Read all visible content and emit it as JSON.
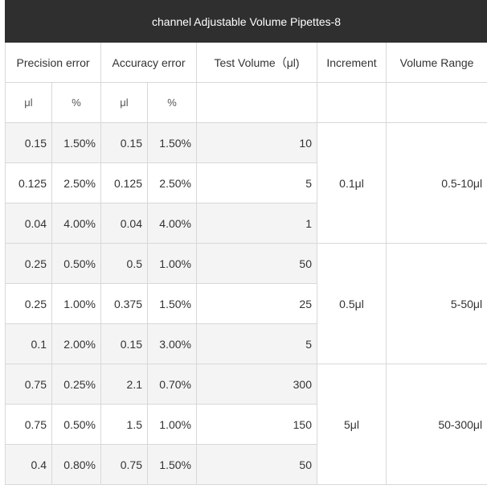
{
  "title": "channel Adjustable Volume Pipettes-8",
  "headers": {
    "precision": "Precision error",
    "accuracy": "Accuracy error",
    "test_volume": "Test Volume（μl)",
    "increment": "Increment",
    "volume_range": "Volume Range"
  },
  "units": {
    "precision_ul": "μl",
    "precision_pct": "%",
    "accuracy_ul": "μl",
    "accuracy_pct": "%"
  },
  "groups": [
    {
      "increment": "0.1μl",
      "volume_range": "0.5-10μl",
      "rows": [
        {
          "prec_ul": "0.15",
          "prec_pct": "1.50%",
          "acc_ul": "0.15",
          "acc_pct": "1.50%",
          "test_volume": "10"
        },
        {
          "prec_ul": "0.125",
          "prec_pct": "2.50%",
          "acc_ul": "0.125",
          "acc_pct": "2.50%",
          "test_volume": "5"
        },
        {
          "prec_ul": "0.04",
          "prec_pct": "4.00%",
          "acc_ul": "0.04",
          "acc_pct": "4.00%",
          "test_volume": "1"
        }
      ]
    },
    {
      "increment": "0.5μl",
      "volume_range": "5-50μl",
      "rows": [
        {
          "prec_ul": "0.25",
          "prec_pct": "0.50%",
          "acc_ul": "0.5",
          "acc_pct": "1.00%",
          "test_volume": "50"
        },
        {
          "prec_ul": "0.25",
          "prec_pct": "1.00%",
          "acc_ul": "0.375",
          "acc_pct": "1.50%",
          "test_volume": "25"
        },
        {
          "prec_ul": "0.1",
          "prec_pct": "2.00%",
          "acc_ul": "0.15",
          "acc_pct": "3.00%",
          "test_volume": "5"
        }
      ]
    },
    {
      "increment": "5μl",
      "volume_range": "50-300μl",
      "rows": [
        {
          "prec_ul": "0.75",
          "prec_pct": "0.25%",
          "acc_ul": "2.1",
          "acc_pct": "0.70%",
          "test_volume": "300"
        },
        {
          "prec_ul": "0.75",
          "prec_pct": "0.50%",
          "acc_ul": "1.5",
          "acc_pct": "1.00%",
          "test_volume": "150"
        },
        {
          "prec_ul": "0.4",
          "prec_pct": "0.80%",
          "acc_ul": "0.75",
          "acc_pct": "1.50%",
          "test_volume": "50"
        }
      ]
    }
  ]
}
